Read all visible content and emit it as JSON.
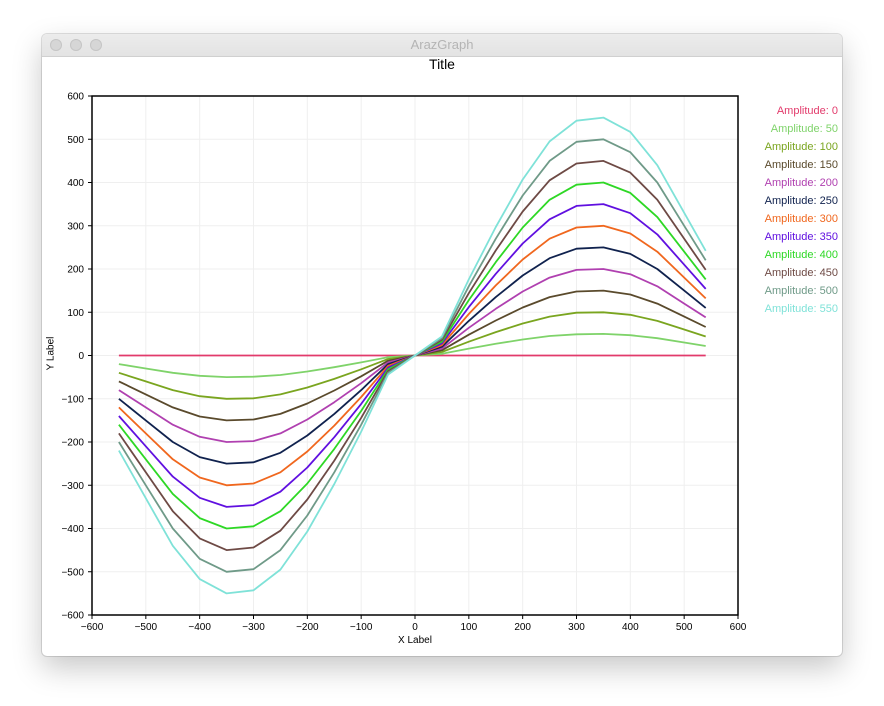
{
  "window": {
    "title": "ArazGraph"
  },
  "chart_data": {
    "type": "line",
    "title": "Title",
    "xlabel": "X Label",
    "ylabel": "Y Label",
    "xlim": [
      -600,
      600
    ],
    "ylim": [
      -600,
      600
    ],
    "xticks": [
      -600,
      -500,
      -400,
      -300,
      -200,
      -100,
      0,
      100,
      200,
      300,
      400,
      500,
      600
    ],
    "yticks": [
      -600,
      -500,
      -400,
      -300,
      -200,
      -100,
      0,
      100,
      200,
      300,
      400,
      500,
      600
    ],
    "xtick_labels": [
      "−600",
      "−500",
      "−400",
      "−300",
      "−200",
      "−100",
      "0",
      "100",
      "200",
      "300",
      "400",
      "500",
      "600"
    ],
    "ytick_labels": [
      "−600",
      "−500",
      "−400",
      "−300",
      "−200",
      "−100",
      "0",
      "100",
      "200",
      "300",
      "400",
      "500",
      "600"
    ],
    "x": [
      -550,
      -500,
      -450,
      -400,
      -350,
      -300,
      -250,
      -200,
      -150,
      -100,
      -50,
      0,
      50,
      100,
      150,
      200,
      250,
      300,
      350,
      400,
      450,
      500,
      540
    ],
    "grid": true,
    "legend_position": "right",
    "series": [
      {
        "name": "Amplitude: 0",
        "color": "#e23a6b",
        "values": [
          0,
          0,
          0,
          0,
          0,
          0,
          0,
          0,
          0,
          0,
          0,
          0,
          0,
          0,
          0,
          0,
          0,
          0,
          0,
          0,
          0,
          0,
          0
        ]
      },
      {
        "name": "Amplitude: 50",
        "color": "#7fd36a",
        "values": [
          -20,
          -30,
          -40,
          -47,
          -50,
          -49,
          -45,
          -37,
          -27,
          -16,
          -4,
          0,
          4,
          16,
          27,
          37,
          45,
          49,
          50,
          47,
          40,
          30,
          22
        ]
      },
      {
        "name": "Amplitude: 100",
        "color": "#7aa51f",
        "values": [
          -40,
          -60,
          -80,
          -94,
          -100,
          -99,
          -90,
          -74,
          -54,
          -32,
          -8,
          0,
          8,
          32,
          54,
          74,
          90,
          99,
          100,
          94,
          80,
          60,
          44
        ]
      },
      {
        "name": "Amplitude: 150",
        "color": "#5a4a2c",
        "values": [
          -60,
          -90,
          -120,
          -141,
          -150,
          -148,
          -135,
          -111,
          -81,
          -48,
          -12,
          0,
          12,
          48,
          81,
          111,
          135,
          148,
          150,
          141,
          120,
          90,
          66
        ]
      },
      {
        "name": "Amplitude: 200",
        "color": "#b040b0",
        "values": [
          -80,
          -120,
          -160,
          -188,
          -200,
          -198,
          -180,
          -148,
          -108,
          -64,
          -16,
          0,
          16,
          64,
          108,
          148,
          180,
          198,
          200,
          188,
          160,
          120,
          88
        ]
      },
      {
        "name": "Amplitude: 250",
        "color": "#10224e",
        "values": [
          -100,
          -150,
          -200,
          -235,
          -250,
          -247,
          -225,
          -185,
          -135,
          -80,
          -20,
          0,
          20,
          80,
          135,
          185,
          225,
          247,
          250,
          235,
          200,
          150,
          110
        ]
      },
      {
        "name": "Amplitude: 300",
        "color": "#f0671e",
        "values": [
          -120,
          -180,
          -240,
          -282,
          -300,
          -296,
          -270,
          -222,
          -162,
          -96,
          -24,
          0,
          24,
          96,
          162,
          222,
          270,
          296,
          300,
          282,
          240,
          180,
          132
        ]
      },
      {
        "name": "Amplitude: 350",
        "color": "#6010e0",
        "values": [
          -140,
          -210,
          -280,
          -329,
          -350,
          -346,
          -315,
          -259,
          -189,
          -112,
          -28,
          0,
          28,
          112,
          189,
          259,
          315,
          346,
          350,
          329,
          280,
          210,
          154
        ]
      },
      {
        "name": "Amplitude: 400",
        "color": "#2ed825",
        "values": [
          -160,
          -240,
          -320,
          -376,
          -400,
          -395,
          -360,
          -296,
          -216,
          -128,
          -32,
          0,
          32,
          128,
          216,
          296,
          360,
          395,
          400,
          376,
          320,
          240,
          176
        ]
      },
      {
        "name": "Amplitude: 450",
        "color": "#6e4a45",
        "values": [
          -180,
          -270,
          -360,
          -423,
          -450,
          -444,
          -405,
          -333,
          -243,
          -144,
          -36,
          0,
          36,
          144,
          243,
          333,
          405,
          444,
          450,
          423,
          360,
          270,
          198
        ]
      },
      {
        "name": "Amplitude: 500",
        "color": "#6f9a88",
        "values": [
          -200,
          -300,
          -400,
          -470,
          -500,
          -494,
          -450,
          -370,
          -270,
          -160,
          -40,
          0,
          40,
          160,
          270,
          370,
          450,
          494,
          500,
          470,
          400,
          300,
          220
        ]
      },
      {
        "name": "Amplitude: 550",
        "color": "#7fe2d8",
        "values": [
          -220,
          -330,
          -440,
          -517,
          -550,
          -543,
          -495,
          -407,
          -297,
          -176,
          -44,
          0,
          44,
          176,
          297,
          407,
          495,
          543,
          550,
          517,
          440,
          330,
          242
        ]
      }
    ]
  }
}
